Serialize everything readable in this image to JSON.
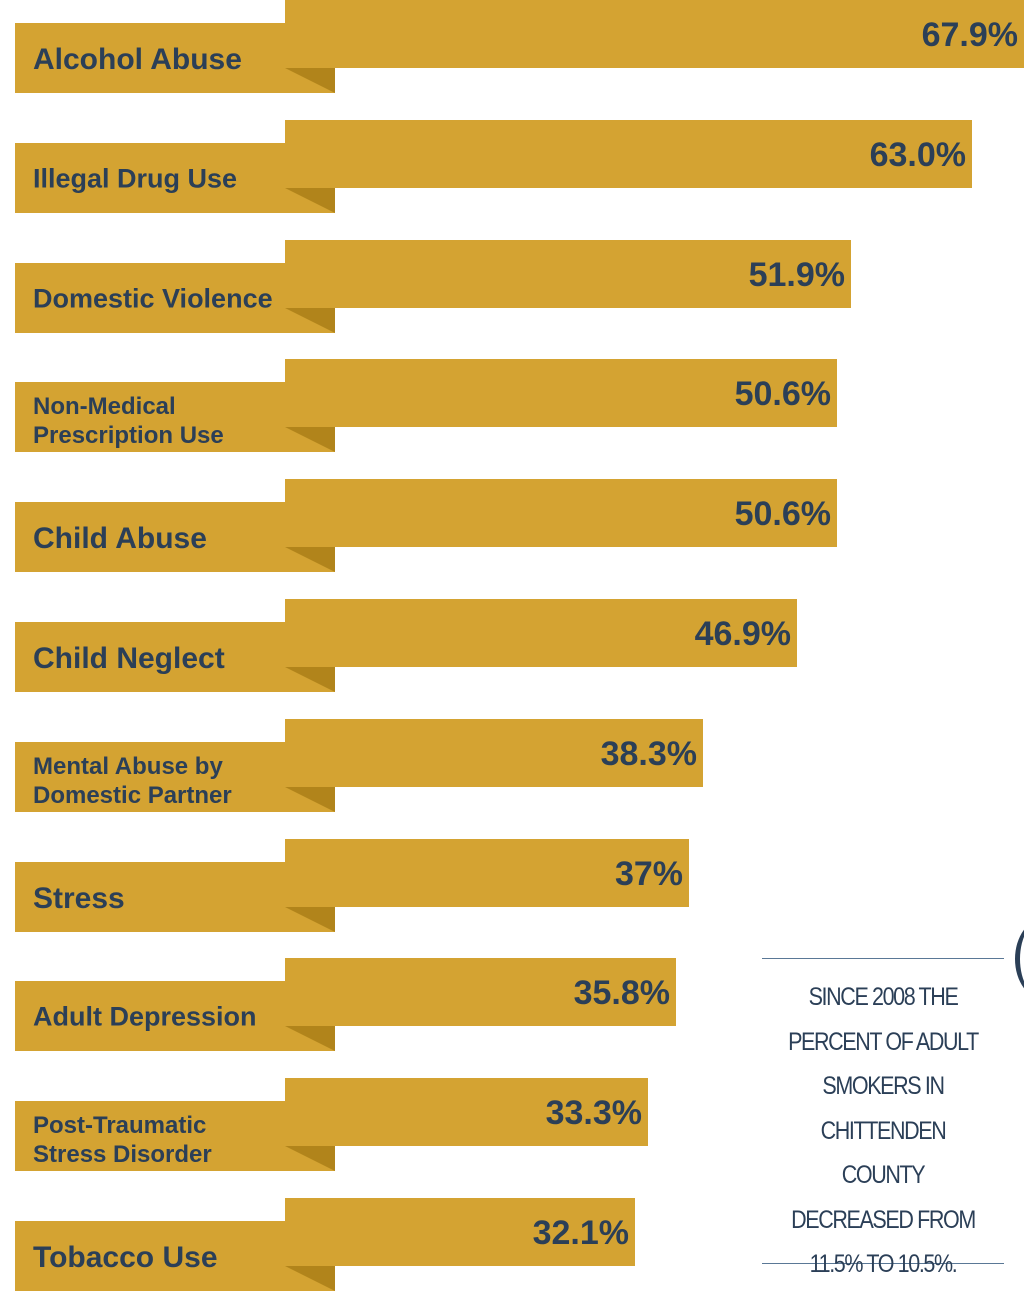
{
  "chart_data": {
    "type": "bar",
    "orientation": "horizontal",
    "categories": [
      "Alcohol Abuse",
      "Illegal Drug Use",
      "Domestic Violence",
      "Non-Medical Prescription Use",
      "Child Abuse",
      "Child Neglect",
      "Mental Abuse by Domestic Partner",
      "Stress",
      "Adult Depression",
      "Post-Traumatic Stress Disorder",
      "Tobacco Use"
    ],
    "values": [
      67.9,
      63.0,
      51.9,
      50.6,
      50.6,
      46.9,
      38.3,
      37,
      35.8,
      33.3,
      32.1
    ],
    "value_labels": [
      "67.9%",
      "63.0%",
      "51.9%",
      "50.6%",
      "50.6%",
      "46.9%",
      "38.3%",
      "37%",
      "35.8%",
      "33.3%",
      "32.1%"
    ],
    "grid": false,
    "legend": "none"
  },
  "note": {
    "text": "Since 2008 the percent of adult smokers in Chittenden County decreased from 11.5% to 10.5%."
  },
  "colors": {
    "bar": "#d4a332",
    "ribbon_fold": "#b1841b",
    "text": "#2b3f57",
    "rule": "#5a7896"
  }
}
